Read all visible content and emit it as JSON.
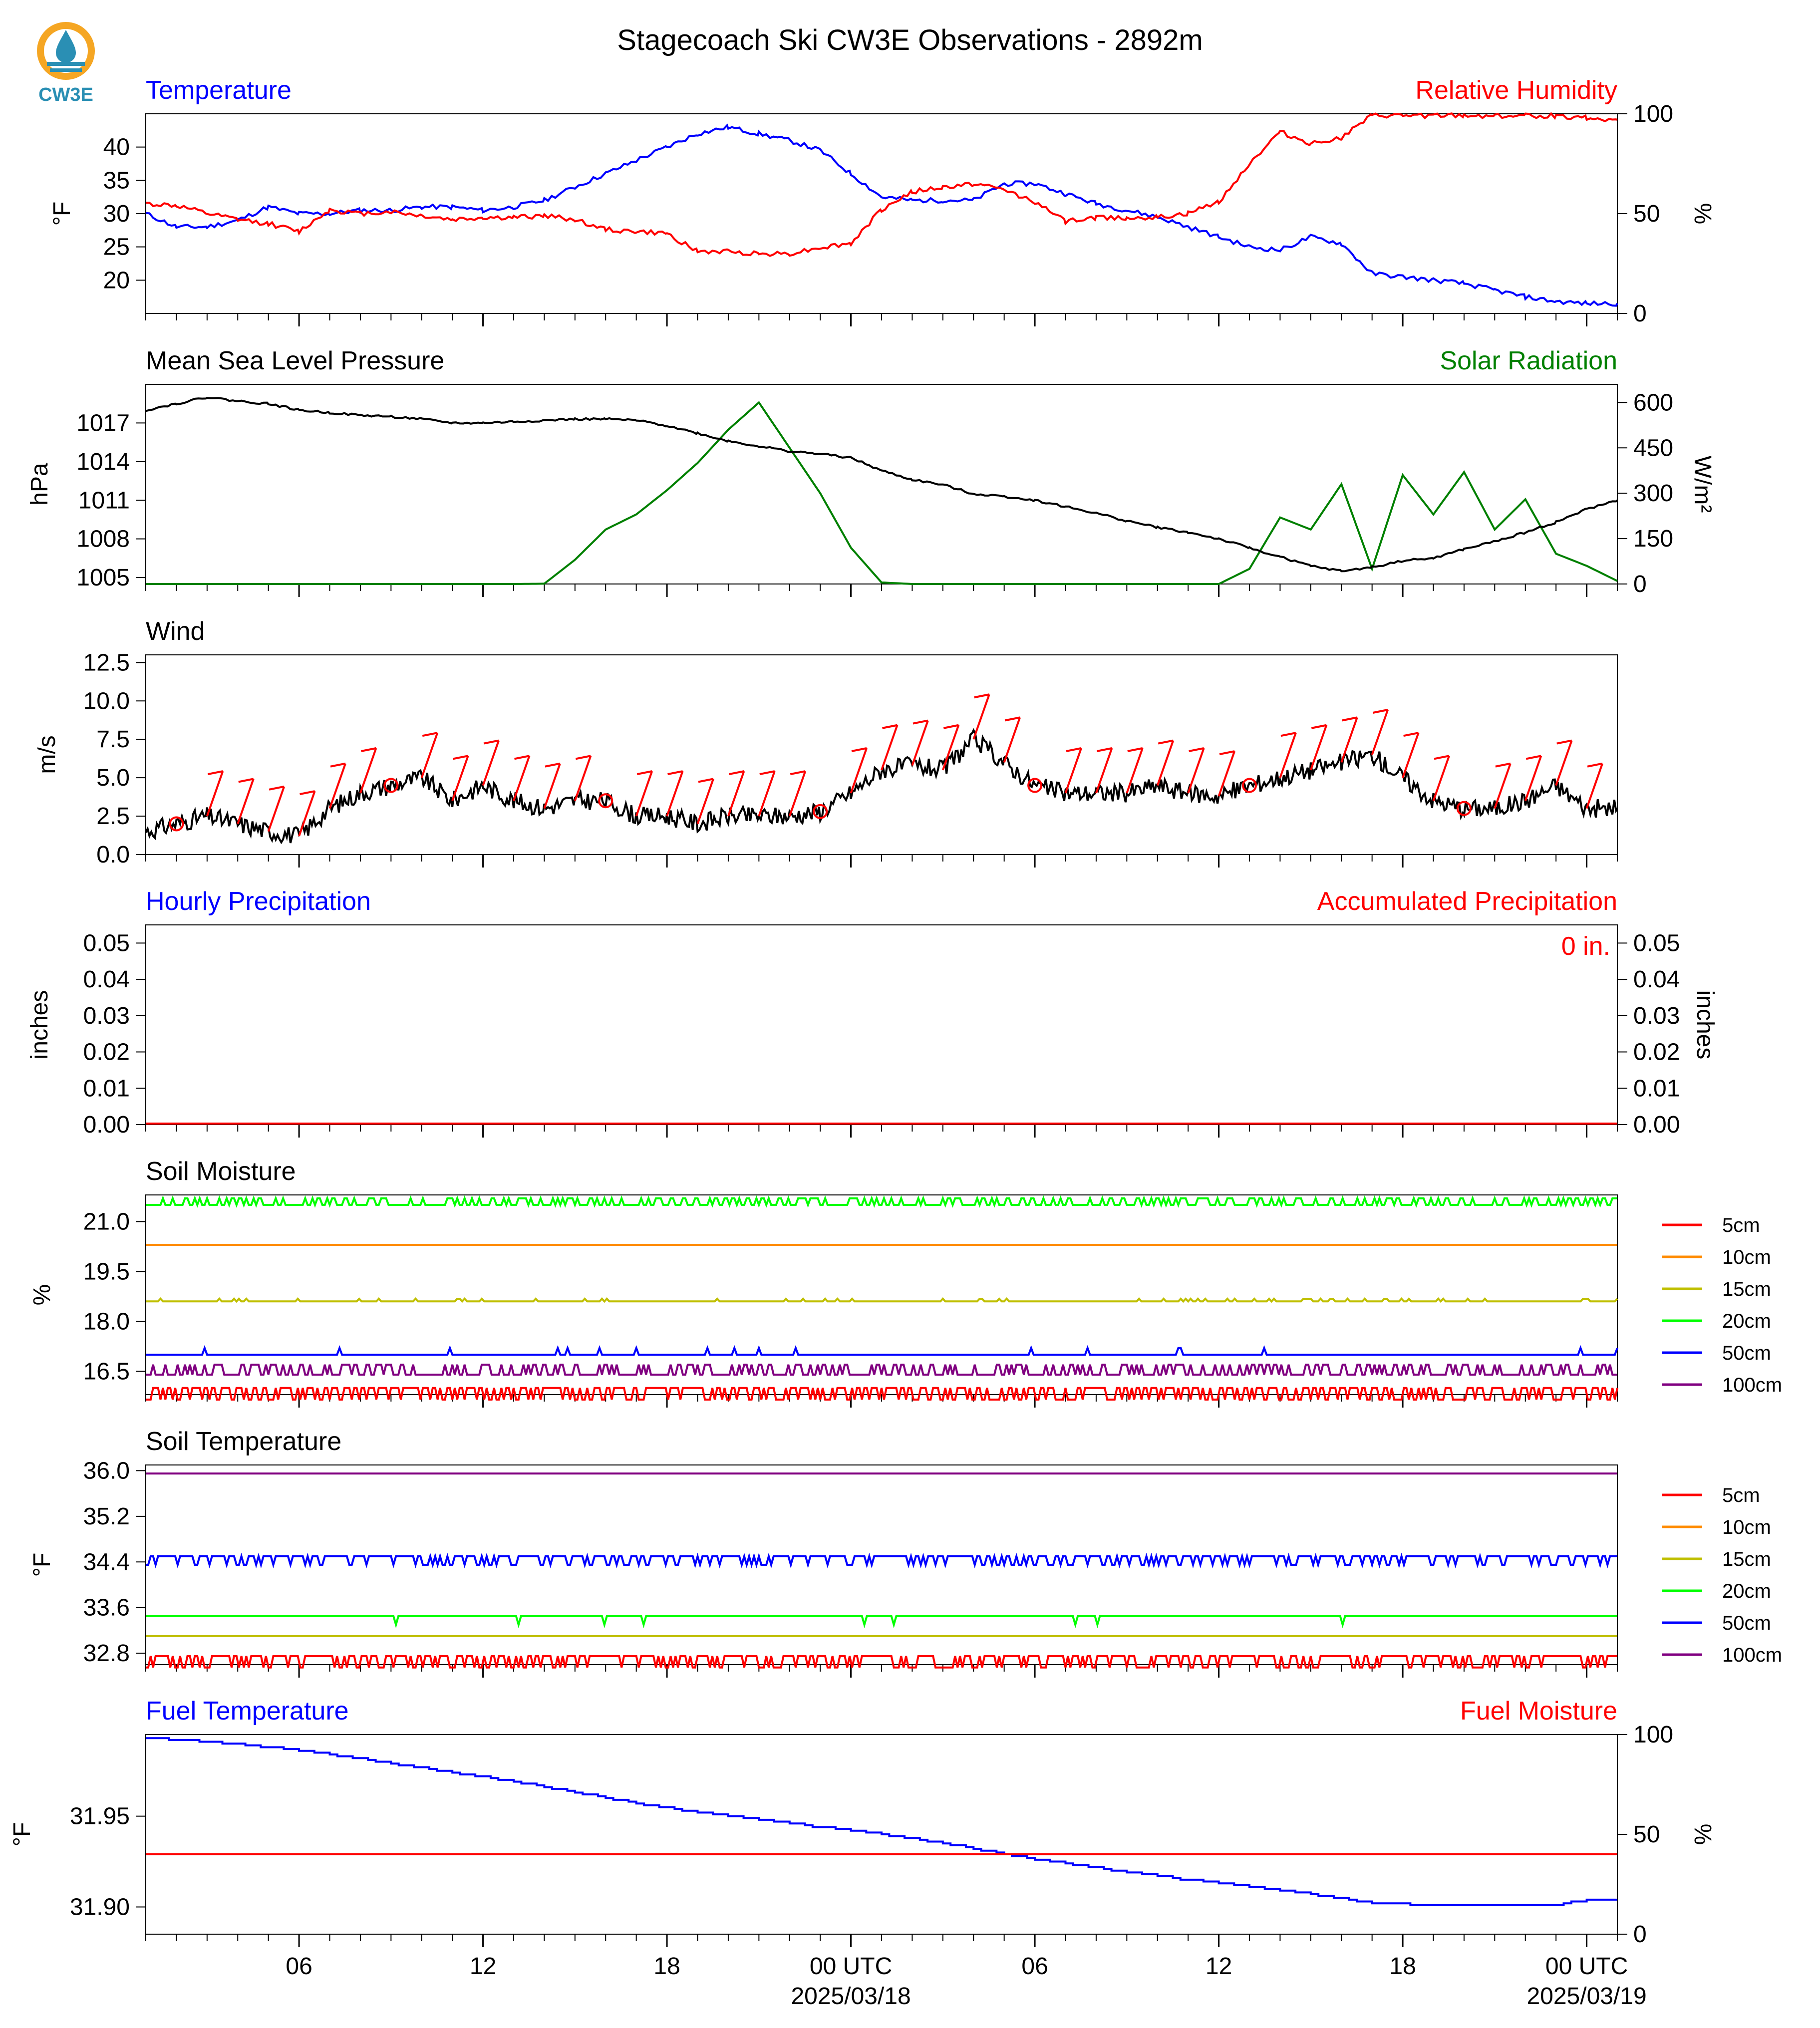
{
  "title": "Stagecoach Ski CW3E Observations - 2892m",
  "logo": {
    "name": "cw3e-logo",
    "text": "CW3E",
    "color": "#2a8fb4"
  },
  "colors": {
    "blue": "#0000ff",
    "red": "#ff0000",
    "green": "#008000",
    "black": "#000000",
    "orange": "#ff8c00",
    "olive": "#bfbf00",
    "lime": "#00ff00",
    "purple": "#800080"
  },
  "time_axis": {
    "start_hour": 0,
    "end_hour": 48,
    "major_ticks": [
      {
        "hour": 5,
        "label": "06"
      },
      {
        "hour": 11,
        "label": "12"
      },
      {
        "hour": 17,
        "label": "18"
      },
      {
        "hour": 23,
        "label": "00 UTC",
        "date": "2025/03/18"
      },
      {
        "hour": 29,
        "label": "06"
      },
      {
        "hour": 35,
        "label": "12"
      },
      {
        "hour": 41,
        "label": "18"
      },
      {
        "hour": 47,
        "label": "00 UTC",
        "date": "2025/03/19"
      }
    ]
  },
  "chart_data": [
    {
      "id": "temp_rh",
      "type": "line",
      "title_left": "Temperature",
      "title_right": "Relative Humidity",
      "ylabel_left": "°F",
      "ylabel_right": "%",
      "ylim_left": [
        15,
        45
      ],
      "yticks_left": [
        20,
        25,
        30,
        35,
        40
      ],
      "ylim_right": [
        0,
        100
      ],
      "yticks_right": [
        0,
        50,
        100
      ],
      "series": [
        {
          "axis": "left",
          "color": "#0000ff",
          "x": [
            0,
            1,
            2,
            3,
            4,
            5,
            6,
            7,
            8,
            9,
            10,
            11,
            12,
            13,
            14,
            15,
            16,
            17,
            18,
            19,
            20,
            21,
            22,
            23,
            24,
            25,
            26,
            27,
            28,
            29,
            30,
            31,
            32,
            33,
            34,
            35,
            36,
            37,
            38,
            39,
            40,
            41,
            42,
            43,
            44,
            45,
            46,
            47,
            48
          ],
          "y": [
            30,
            28,
            28,
            29,
            31,
            30,
            30,
            30.5,
            30.5,
            31,
            31,
            30.5,
            31,
            32,
            34,
            36,
            38,
            40,
            42,
            43,
            42,
            41,
            39.5,
            36,
            32.5,
            32,
            32,
            32,
            34.5,
            34.5,
            33,
            31.5,
            30.5,
            29.5,
            28,
            26.5,
            25,
            24.5,
            26.5,
            25.5,
            21,
            20.5,
            20,
            19.5,
            18.5,
            17.5,
            16.8,
            16.5,
            16.5
          ]
        },
        {
          "axis": "right",
          "color": "#ff0000",
          "x": [
            0,
            1,
            2,
            3,
            4,
            5,
            6,
            7,
            8,
            9,
            10,
            11,
            12,
            13,
            14,
            15,
            16,
            17,
            18,
            19,
            20,
            21,
            22,
            23,
            24,
            25,
            26,
            27,
            28,
            29,
            30,
            31,
            32,
            33,
            34,
            35,
            36,
            37,
            38,
            39,
            40,
            41,
            42,
            43,
            44,
            45,
            46,
            47,
            48
          ],
          "y": [
            55,
            54,
            50,
            47,
            45,
            41,
            52,
            50,
            51,
            49,
            47,
            48,
            48,
            49,
            47,
            42,
            41,
            40,
            31,
            31,
            30,
            30,
            33,
            35,
            52,
            61,
            63,
            65,
            62,
            56,
            46,
            48,
            48,
            48,
            50,
            56,
            75,
            91,
            85,
            88,
            99,
            99,
            99,
            99,
            99,
            99,
            99,
            98,
            97
          ]
        }
      ]
    },
    {
      "id": "pressure_solar",
      "type": "line",
      "title_left": "Mean Sea Level Pressure",
      "title_right": "Solar Radiation",
      "ylabel_left": "hPa",
      "ylabel_right": "W/m²",
      "ylim_left": [
        1004.5,
        1020
      ],
      "yticks_left": [
        1005,
        1008,
        1011,
        1014,
        1017
      ],
      "ylim_right": [
        0,
        660
      ],
      "yticks_right": [
        0,
        150,
        300,
        450,
        600
      ],
      "series": [
        {
          "axis": "left",
          "color": "#000000",
          "x": [
            0,
            1,
            2,
            3,
            4,
            5,
            6,
            7,
            8,
            9,
            10,
            11,
            12,
            13,
            14,
            15,
            16,
            17,
            18,
            19,
            20,
            21,
            22,
            23,
            24,
            25,
            26,
            27,
            28,
            29,
            30,
            31,
            32,
            33,
            34,
            35,
            36,
            37,
            38,
            39,
            40,
            41,
            42,
            43,
            44,
            45,
            46,
            47,
            48
          ],
          "y": [
            1018,
            1018.5,
            1019,
            1018.7,
            1018.5,
            1018,
            1017.8,
            1017.6,
            1017.5,
            1017.3,
            1017,
            1017,
            1017.1,
            1017.2,
            1017.3,
            1017.3,
            1017.2,
            1016.8,
            1016.2,
            1015.6,
            1015.2,
            1014.8,
            1014.6,
            1014.3,
            1013.3,
            1012.6,
            1012.2,
            1011.5,
            1011.3,
            1011,
            1010.5,
            1010,
            1009.4,
            1008.9,
            1008.5,
            1008,
            1007.3,
            1006.6,
            1005.9,
            1005.5,
            1005.8,
            1006.3,
            1006.5,
            1007.2,
            1007.8,
            1008.5,
            1009.3,
            1010.3,
            1011
          ]
        },
        {
          "axis": "right",
          "color": "#008000",
          "x": [
            0,
            1,
            2,
            3,
            4,
            5,
            6,
            7,
            8,
            9,
            10,
            11,
            12,
            13,
            14,
            15,
            16,
            17,
            18,
            19,
            20,
            21,
            22,
            23,
            24,
            25,
            26,
            27,
            28,
            29,
            30,
            31,
            32,
            33,
            34,
            35,
            36,
            37,
            38,
            39,
            40,
            41,
            42,
            43,
            44,
            45,
            46,
            47,
            48
          ],
          "y": [
            0,
            0,
            0,
            0,
            0,
            0,
            0,
            0,
            0,
            0,
            0,
            0,
            0,
            1,
            80,
            180,
            230,
            310,
            400,
            510,
            600,
            450,
            300,
            120,
            5,
            0,
            0,
            0,
            0,
            0,
            0,
            0,
            0,
            0,
            0,
            0,
            50,
            220,
            180,
            330,
            50,
            360,
            230,
            370,
            180,
            280,
            100,
            60,
            10
          ]
        }
      ]
    },
    {
      "id": "wind",
      "type": "line",
      "title": "Wind",
      "ylabel": "m/s",
      "ylim": [
        0,
        13
      ],
      "yticks": [
        0.0,
        2.5,
        5.0,
        7.5,
        10.0,
        12.5
      ],
      "series": [
        {
          "color": "#000000",
          "x": [
            0,
            1,
            2,
            3,
            4,
            5,
            6,
            7,
            8,
            9,
            10,
            11,
            12,
            13,
            14,
            15,
            16,
            17,
            18,
            19,
            20,
            21,
            22,
            23,
            24,
            25,
            26,
            27,
            28,
            29,
            30,
            31,
            32,
            33,
            34,
            35,
            36,
            37,
            38,
            39,
            40,
            41,
            42,
            43,
            44,
            45,
            46,
            47,
            48
          ],
          "y": [
            1.5,
            2,
            2.5,
            2,
            1.5,
            1.2,
            3,
            4,
            4.5,
            5,
            3.5,
            4.5,
            3.5,
            3,
            3.5,
            3.5,
            2.5,
            2.5,
            2,
            2.5,
            2.5,
            2.5,
            2.8,
            4,
            5.5,
            5.8,
            5.5,
            7.5,
            6,
            4.5,
            4,
            4,
            4,
            4.5,
            4,
            3.8,
            4.5,
            5,
            5.5,
            6,
            6.5,
            5,
            3.5,
            3,
            3,
            3.5,
            4.5,
            3,
            3
          ]
        }
      ],
      "barbs_hours": [
        1,
        2,
        3,
        4,
        5,
        6,
        7,
        8,
        9,
        10,
        11,
        12,
        13,
        14,
        15,
        16,
        17,
        18,
        19,
        20,
        21,
        22,
        23,
        24,
        25,
        26,
        27,
        28,
        29,
        30,
        31,
        32,
        33,
        34,
        35,
        36,
        37,
        38,
        39,
        40,
        41,
        42,
        43,
        44,
        45,
        46,
        47
      ],
      "barb_color": "#ff0000"
    },
    {
      "id": "precip",
      "type": "line",
      "title_left": "Hourly Precipitation",
      "title_right": "Accumulated Precipitation",
      "ylabel_left": "inches",
      "ylabel_right": "inches",
      "ylim": [
        0,
        0.055
      ],
      "yticks": [
        0.0,
        0.01,
        0.02,
        0.03,
        0.04,
        0.05
      ],
      "accum_label": "0 in.",
      "series": [
        {
          "axis": "left",
          "color": "#ff0000",
          "x": [
            0,
            48
          ],
          "y": [
            0,
            0
          ]
        }
      ]
    },
    {
      "id": "soil_moisture",
      "type": "line",
      "title": "Soil Moisture",
      "ylabel": "%",
      "ylim": [
        15.8,
        21.8
      ],
      "yticks": [
        16.5,
        18.0,
        19.5,
        21.0
      ],
      "series": [
        {
          "name": "5cm",
          "color": "#ff0000",
          "x": [
            0,
            48
          ],
          "y": [
            16.0,
            16.0
          ]
        },
        {
          "name": "10cm",
          "color": "#ff8c00",
          "x": [
            0,
            48
          ],
          "y": [
            20.3,
            20.3
          ]
        },
        {
          "name": "15cm",
          "color": "#bfbf00",
          "x": [
            0,
            48
          ],
          "y": [
            18.6,
            18.6
          ]
        },
        {
          "name": "20cm",
          "color": "#00ff00",
          "x": [
            0,
            48
          ],
          "y": [
            21.5,
            21.5
          ]
        },
        {
          "name": "50cm",
          "color": "#0000ff",
          "x": [
            0,
            48
          ],
          "y": [
            17.0,
            17.0
          ]
        },
        {
          "name": "100cm",
          "color": "#800080",
          "x": [
            0,
            48
          ],
          "y": [
            16.4,
            16.4
          ]
        }
      ]
    },
    {
      "id": "soil_temp",
      "type": "line",
      "title": "Soil Temperature",
      "ylabel": "°F",
      "ylim": [
        32.6,
        36.1
      ],
      "yticks": [
        32.8,
        33.6,
        34.4,
        35.2,
        36.0
      ],
      "series": [
        {
          "name": "5cm",
          "color": "#ff0000",
          "x": [
            0,
            48
          ],
          "y": [
            32.75,
            32.75
          ]
        },
        {
          "name": "10cm",
          "color": "#ff8c00",
          "x": [
            0,
            48
          ],
          "y": [
            33.1,
            33.1
          ]
        },
        {
          "name": "15cm",
          "color": "#bfbf00",
          "x": [
            0,
            48
          ],
          "y": [
            33.1,
            33.1
          ]
        },
        {
          "name": "20cm",
          "color": "#00ff00",
          "x": [
            0,
            48
          ],
          "y": [
            33.45,
            33.45
          ]
        },
        {
          "name": "50cm",
          "color": "#0000ff",
          "x": [
            0,
            48
          ],
          "y": [
            34.5,
            34.5
          ]
        },
        {
          "name": "100cm",
          "color": "#800080",
          "x": [
            0,
            48
          ],
          "y": [
            35.95,
            35.95
          ]
        }
      ]
    },
    {
      "id": "fuel",
      "type": "line",
      "title_left": "Fuel Temperature",
      "title_right": "Fuel Moisture",
      "ylabel_left": "°F",
      "ylabel_right": "%",
      "ylim_left": [
        31.885,
        31.995
      ],
      "yticks_left": [
        31.9,
        31.95
      ],
      "ylim_right": [
        0,
        100
      ],
      "yticks_right": [
        0,
        50,
        100
      ],
      "series": [
        {
          "axis": "left",
          "color": "#0000ff",
          "x": [
            0,
            2,
            4,
            6,
            8,
            10,
            12,
            14,
            16,
            18,
            20,
            22,
            24,
            26,
            28,
            30,
            32,
            34,
            36,
            38,
            40,
            42,
            44,
            46,
            47,
            48
          ],
          "y": [
            31.993,
            31.991,
            31.988,
            31.984,
            31.979,
            31.974,
            31.969,
            31.963,
            31.957,
            31.952,
            31.948,
            31.944,
            31.94,
            31.935,
            31.929,
            31.924,
            31.919,
            31.915,
            31.911,
            31.907,
            31.902,
            31.901,
            31.901,
            31.901,
            31.904,
            31.904
          ]
        },
        {
          "axis": "right",
          "color": "#ff0000",
          "x": [
            0,
            48
          ],
          "y": [
            40,
            40
          ]
        }
      ]
    }
  ]
}
